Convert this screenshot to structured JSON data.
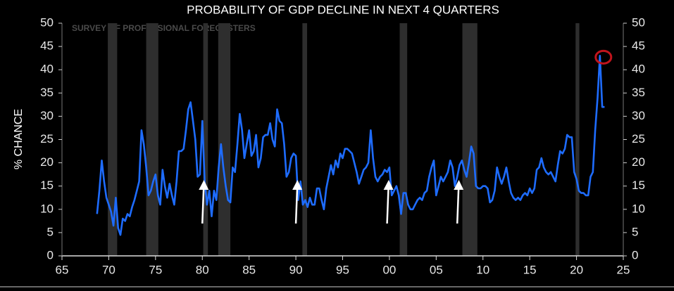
{
  "chart_data": {
    "type": "line",
    "title": "PROBABILITY OF GDP DECLINE IN NEXT 4 QUARTERS",
    "subtitle": "SURVEY OF PROFESSIONAL FORECASTERS",
    "ylabel": "% CHANCE",
    "xlim": [
      1965,
      2025
    ],
    "xticks": [
      {
        "value": 1965,
        "label": "65"
      },
      {
        "value": 1970,
        "label": "70"
      },
      {
        "value": 1975,
        "label": "75"
      },
      {
        "value": 1980,
        "label": "80"
      },
      {
        "value": 1985,
        "label": "85"
      },
      {
        "value": 1990,
        "label": "90"
      },
      {
        "value": 1995,
        "label": "95"
      },
      {
        "value": 2000,
        "label": "00"
      },
      {
        "value": 2005,
        "label": "05"
      },
      {
        "value": 2010,
        "label": "10"
      },
      {
        "value": 2015,
        "label": "15"
      },
      {
        "value": 2020,
        "label": "20"
      },
      {
        "value": 2025,
        "label": "25"
      }
    ],
    "ylim": [
      0,
      50
    ],
    "yticks": [
      0,
      5,
      10,
      15,
      20,
      25,
      30,
      35,
      40,
      45,
      50
    ],
    "shaded_periods": [
      [
        1969.9,
        1970.9
      ],
      [
        1974,
        1975.3
      ],
      [
        1980.1,
        1980.6
      ],
      [
        1981.7,
        1983
      ],
      [
        1990.7,
        1991.2
      ],
      [
        2001.1,
        2001.9
      ],
      [
        2007.8,
        2009.4
      ],
      [
        2019.9,
        2020.3
      ]
    ],
    "shade_color": "#2e2e2e",
    "arrows": [
      1980,
      1990,
      1999.75,
      2007.25
    ],
    "highlight_color": "#c0141c",
    "series": [
      {
        "name": "Probability",
        "color": "#1e6cff",
        "x": [
          1968.75,
          1969,
          1969.25,
          1969.5,
          1969.75,
          1970,
          1970.25,
          1970.5,
          1970.75,
          1971,
          1971.25,
          1971.5,
          1971.75,
          1972,
          1972.25,
          1972.5,
          1972.75,
          1973,
          1973.25,
          1973.5,
          1973.75,
          1974,
          1974.25,
          1974.5,
          1974.75,
          1975,
          1975.25,
          1975.5,
          1975.75,
          1976,
          1976.25,
          1976.5,
          1976.75,
          1977,
          1977.25,
          1977.5,
          1977.75,
          1978,
          1978.25,
          1978.5,
          1978.75,
          1979,
          1979.25,
          1979.5,
          1979.75,
          1980,
          1980.25,
          1980.5,
          1980.75,
          1981,
          1981.25,
          1981.5,
          1981.75,
          1982,
          1982.25,
          1982.5,
          1982.75,
          1983,
          1983.25,
          1983.5,
          1983.75,
          1984,
          1984.25,
          1984.5,
          1984.75,
          1985,
          1985.25,
          1985.5,
          1985.75,
          1986,
          1986.25,
          1986.5,
          1986.75,
          1987,
          1987.25,
          1987.5,
          1987.75,
          1988,
          1988.25,
          1988.5,
          1988.75,
          1989,
          1989.25,
          1989.5,
          1989.75,
          1990,
          1990.25,
          1990.5,
          1990.75,
          1991,
          1991.25,
          1991.5,
          1991.75,
          1992,
          1992.25,
          1992.5,
          1992.75,
          1993,
          1993.25,
          1993.5,
          1993.75,
          1994,
          1994.25,
          1994.5,
          1994.75,
          1995,
          1995.25,
          1995.5,
          1995.75,
          1996,
          1996.25,
          1996.5,
          1996.75,
          1997,
          1997.25,
          1997.5,
          1997.75,
          1998,
          1998.25,
          1998.5,
          1998.75,
          1999,
          1999.25,
          1999.5,
          1999.75,
          2000,
          2000.25,
          2000.5,
          2000.75,
          2001,
          2001.25,
          2001.5,
          2001.75,
          2002,
          2002.25,
          2002.5,
          2002.75,
          2003,
          2003.25,
          2003.5,
          2003.75,
          2004,
          2004.25,
          2004.5,
          2004.75,
          2005,
          2005.25,
          2005.5,
          2005.75,
          2006,
          2006.25,
          2006.5,
          2006.75,
          2007,
          2007.25,
          2007.5,
          2007.75,
          2008,
          2008.25,
          2008.5,
          2008.75,
          2009,
          2009.25,
          2009.5,
          2009.75,
          2010,
          2010.25,
          2010.5,
          2010.75,
          2011,
          2011.25,
          2011.5,
          2011.75,
          2012,
          2012.25,
          2012.5,
          2012.75,
          2013,
          2013.25,
          2013.5,
          2013.75,
          2014,
          2014.25,
          2014.5,
          2014.75,
          2015,
          2015.25,
          2015.5,
          2015.75,
          2016,
          2016.25,
          2016.5,
          2016.75,
          2017,
          2017.25,
          2017.5,
          2017.75,
          2018,
          2018.25,
          2018.5,
          2018.75,
          2019,
          2019.25,
          2019.5,
          2019.75,
          2020,
          2020.25,
          2020.5,
          2020.75,
          2021,
          2021.25,
          2021.5,
          2021.75,
          2022,
          2022.25,
          2022.5,
          2022.75,
          2023
        ],
        "values": [
          9,
          14,
          20.5,
          16,
          12.5,
          11,
          9.5,
          6.5,
          12.5,
          6,
          4.5,
          8,
          7.5,
          9,
          8.5,
          10.5,
          12,
          14,
          16,
          27,
          24,
          19,
          13,
          14,
          16,
          17.5,
          13,
          11,
          18.5,
          15,
          12.5,
          15.5,
          13,
          11,
          16,
          22.5,
          22.5,
          23,
          27,
          31.5,
          33,
          29,
          25,
          17,
          17.5,
          29,
          16,
          11,
          14,
          8.5,
          14,
          12,
          19,
          24,
          19,
          15,
          12,
          11.5,
          19,
          18,
          24,
          30.5,
          27,
          21,
          24,
          27,
          21.5,
          22.5,
          26,
          19,
          21,
          25.5,
          26,
          26,
          28.5,
          25,
          23.5,
          31.5,
          29,
          28.5,
          24,
          17,
          18,
          21,
          22,
          21.5,
          12,
          16,
          11,
          12,
          10.5,
          12.5,
          11,
          11,
          14.5,
          14.5,
          12,
          10,
          14.5,
          17,
          19.5,
          17.5,
          20.5,
          19,
          22,
          21,
          23,
          23,
          22.5,
          22,
          20,
          18,
          15.5,
          17,
          18.5,
          19,
          20,
          27,
          21,
          17,
          16,
          17,
          17.5,
          18.5,
          18,
          19,
          13,
          14,
          15,
          13,
          9,
          13.5,
          13.5,
          11,
          10,
          10,
          11,
          12,
          12.5,
          12,
          13.5,
          14,
          17,
          19,
          20.5,
          13,
          15,
          17,
          16,
          17,
          18,
          20.5,
          19,
          15,
          17,
          19.5,
          20.5,
          18.5,
          17,
          20,
          23.5,
          22,
          15,
          14.5,
          14.5,
          15,
          15,
          14.5,
          11.5,
          12,
          14,
          19,
          17,
          15.5,
          17,
          19,
          16,
          13.5,
          12.5,
          12,
          12.5,
          12,
          13,
          13.5,
          13,
          14.5,
          13.5,
          14.5,
          18.5,
          19,
          21,
          19,
          18,
          17.5,
          18,
          17,
          16,
          19.5,
          22.5,
          22,
          23,
          26,
          25.5,
          25.5,
          18,
          16.5,
          14,
          13.5,
          13.5,
          13,
          13,
          17,
          18,
          27,
          34,
          43,
          32,
          32
        ]
      }
    ]
  }
}
